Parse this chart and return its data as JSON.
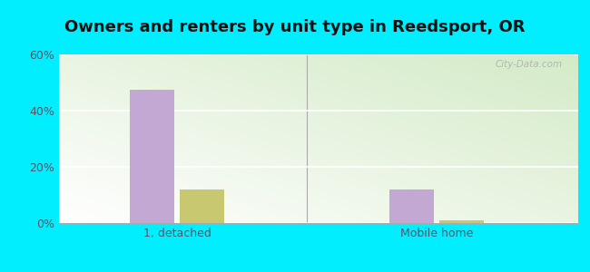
{
  "title": "Owners and renters by unit type in Reedsport, OR",
  "categories": [
    "1, detached",
    "Mobile home"
  ],
  "owner_values": [
    47.5,
    12.0
  ],
  "renter_values": [
    12.0,
    1.0
  ],
  "owner_color": "#c4a8d4",
  "renter_color": "#c8c870",
  "ylim": [
    0,
    60
  ],
  "yticks": [
    0,
    20,
    40,
    60
  ],
  "ytick_labels": [
    "0%",
    "20%",
    "40%",
    "60%"
  ],
  "bar_width": 0.38,
  "group_positions": [
    1.0,
    3.2
  ],
  "xlim": [
    0,
    4.4
  ],
  "background_outer": "#00eeff",
  "watermark": "City-Data.com",
  "title_fontsize": 13,
  "axis_fontsize": 9,
  "tick_color": "#555566"
}
